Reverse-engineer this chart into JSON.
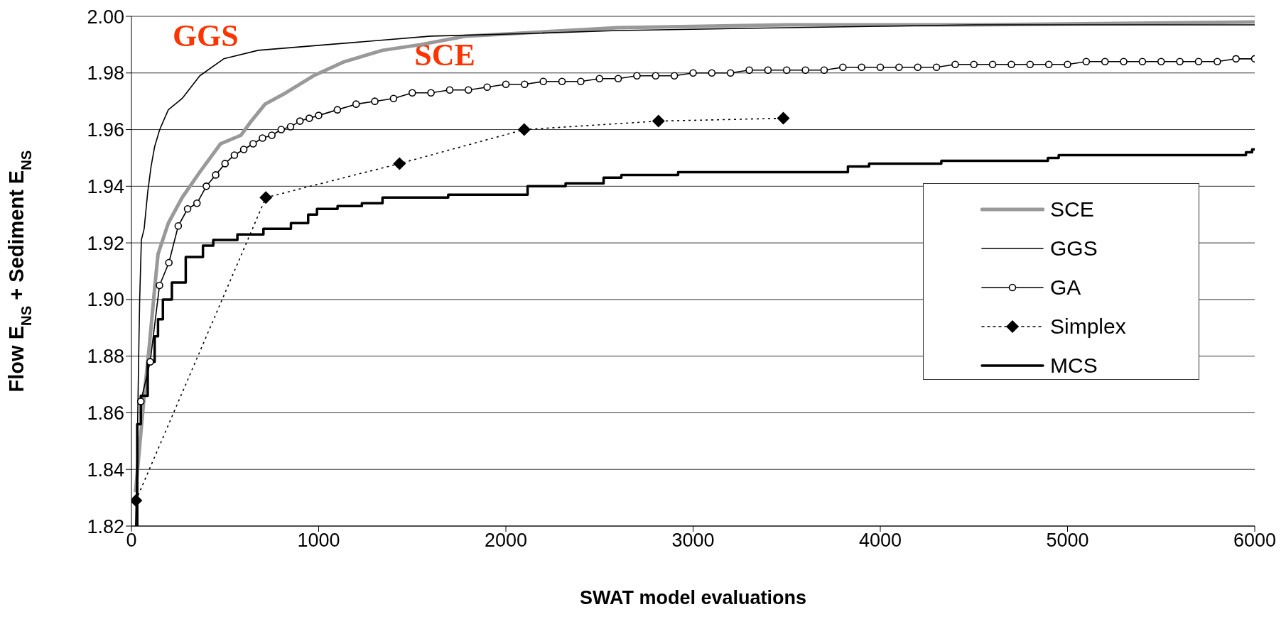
{
  "chart_data": {
    "type": "line",
    "xlabel": "SWAT model evaluations",
    "ylabel": "Flow E$_{NS}$ + Sediment E$_{NS}$",
    "xlim": [
      0,
      6000
    ],
    "xticks": [
      0,
      1000,
      2000,
      3000,
      4000,
      5000,
      6000
    ],
    "ylim": [
      1.82,
      2.0
    ],
    "yticks": [
      1.82,
      1.84,
      1.86,
      1.88,
      {
        "value": 1.9,
        "label": "1.90"
      },
      1.92,
      1.94,
      1.96,
      1.98,
      {
        "value": 2.0,
        "label": "2.00"
      }
    ],
    "grid": "y",
    "legend": "right",
    "annotations": [
      "GGS",
      "SCE"
    ],
    "series": [
      {
        "name": "SCE",
        "color": "#999999",
        "marker": "none",
        "x": [
          22,
          68,
          96,
          124,
          142,
          197,
          271,
          365,
          476,
          585,
          640,
          714,
          825,
          972,
          1138,
          1341,
          1544,
          1784,
          2061,
          2596,
          3500,
          4500,
          6000
        ],
        "values": [
          1.832,
          1.866,
          1.884,
          1.904,
          1.916,
          1.927,
          1.936,
          1.945,
          1.955,
          1.958,
          1.963,
          1.969,
          1.973,
          1.979,
          1.984,
          1.988,
          1.99,
          1.993,
          1.994,
          1.996,
          1.997,
          1.997,
          1.998
        ]
      },
      {
        "name": "GGS",
        "color": "#000000",
        "marker": "none",
        "x": [
          22,
          31,
          40,
          44,
          53,
          68,
          87,
          105,
          124,
          151,
          197,
          271,
          365,
          493,
          677,
          1046,
          1600,
          2153,
          2596,
          3500,
          4500,
          6000
        ],
        "values": [
          1.82,
          1.848,
          1.885,
          1.9,
          1.921,
          1.925,
          1.938,
          1.947,
          1.954,
          1.96,
          1.967,
          1.971,
          1.979,
          1.985,
          1.988,
          1.99,
          1.993,
          1.994,
          1.995,
          1.996,
          1.997,
          1.997
        ]
      },
      {
        "name": "GA",
        "color": "#000000",
        "marker": "circle",
        "x": [
          50,
          100,
          150,
          200,
          250,
          300,
          350,
          400,
          450,
          500,
          550,
          600,
          650,
          700,
          750,
          800,
          850,
          900,
          950,
          1000,
          1100,
          1200,
          1300,
          1400,
          1500,
          1600,
          1700,
          1800,
          1900,
          2000,
          2100,
          2200,
          2300,
          2400,
          2500,
          2600,
          2700,
          2800,
          2900,
          3000,
          3100,
          3200,
          3300,
          3400,
          3500,
          3600,
          3700,
          3800,
          3900,
          4000,
          4100,
          4200,
          4300,
          4400,
          4500,
          4600,
          4700,
          4800,
          4900,
          5000,
          5100,
          5200,
          5300,
          5400,
          5500,
          5600,
          5700,
          5800,
          5900,
          6000
        ],
        "values": [
          1.864,
          1.878,
          1.905,
          1.913,
          1.926,
          1.932,
          1.934,
          1.94,
          1.944,
          1.948,
          1.951,
          1.953,
          1.955,
          1.957,
          1.958,
          1.96,
          1.961,
          1.963,
          1.964,
          1.965,
          1.967,
          1.969,
          1.97,
          1.971,
          1.973,
          1.973,
          1.974,
          1.974,
          1.975,
          1.976,
          1.976,
          1.977,
          1.977,
          1.977,
          1.978,
          1.978,
          1.979,
          1.979,
          1.979,
          1.98,
          1.98,
          1.98,
          1.981,
          1.981,
          1.981,
          1.981,
          1.981,
          1.982,
          1.982,
          1.982,
          1.982,
          1.982,
          1.982,
          1.983,
          1.983,
          1.983,
          1.983,
          1.983,
          1.983,
          1.983,
          1.984,
          1.984,
          1.984,
          1.984,
          1.984,
          1.984,
          1.984,
          1.984,
          1.985,
          1.985
        ]
      },
      {
        "name": "Simplex",
        "color": "#000000",
        "marker": "diamond",
        "line_style": "dotted",
        "x": [
          24,
          718,
          1432,
          2098,
          2815,
          3482
        ],
        "values": [
          1.829,
          1.936,
          1.948,
          1.96,
          1.963,
          1.964
        ]
      },
      {
        "name": "MCS",
        "type": "step",
        "color": "#000000",
        "marker": "none",
        "x": [
          20,
          31,
          50,
          87,
          124,
          142,
          168,
          216,
          290,
          382,
          437,
          566,
          705,
          852,
          944,
          991,
          1101,
          1231,
          1341,
          1692,
          1840,
          2116,
          2319,
          2522,
          2617,
          2920,
          3827,
          3940,
          4326,
          4450,
          4895,
          4953,
          5953,
          5986,
          6000
        ],
        "values": [
          1.82,
          1.856,
          1.866,
          1.878,
          1.887,
          1.893,
          1.9,
          1.906,
          1.915,
          1.919,
          1.921,
          1.923,
          1.925,
          1.927,
          1.93,
          1.932,
          1.933,
          1.934,
          1.936,
          1.937,
          1.937,
          1.94,
          1.941,
          1.943,
          1.944,
          1.945,
          1.947,
          1.948,
          1.949,
          1.949,
          1.95,
          1.951,
          1.952,
          1.953,
          1.953
        ]
      }
    ]
  }
}
